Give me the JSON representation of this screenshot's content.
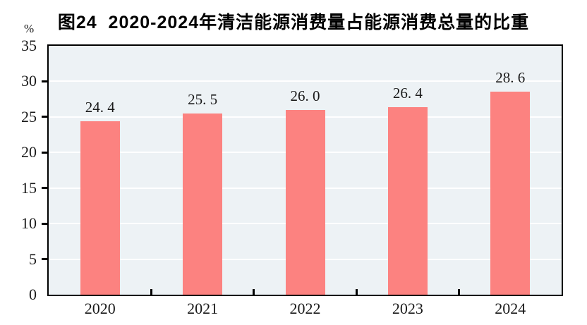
{
  "title": "图24  2020-2024年清洁能源消费量占能源消费总量的比重",
  "y_axis": {
    "unit": "%",
    "tick_labels": [
      "0",
      "5",
      "10",
      "15",
      "20",
      "25",
      "30",
      "35"
    ]
  },
  "chart_data": {
    "type": "bar",
    "title": "图24  2020-2024年清洁能源消费量占能源消费总量的比重",
    "categories": [
      "2020",
      "2021",
      "2022",
      "2023",
      "2024"
    ],
    "values": [
      24.4,
      25.5,
      26.0,
      26.4,
      28.6
    ],
    "value_labels": [
      "24. 4",
      "25. 5",
      "26. 0",
      "26. 4",
      "28. 6"
    ],
    "xlabel": "",
    "ylabel": "%",
    "ylim": [
      0,
      35
    ],
    "ytick_step": 5,
    "grid": "horizontal",
    "legend": "none",
    "colors": {
      "bar_fill": "#FC8280",
      "plot_background": "#EDF2F5",
      "gridline": "#FFFFFF",
      "axis": "#000000",
      "text": "#1A1A1A"
    }
  }
}
